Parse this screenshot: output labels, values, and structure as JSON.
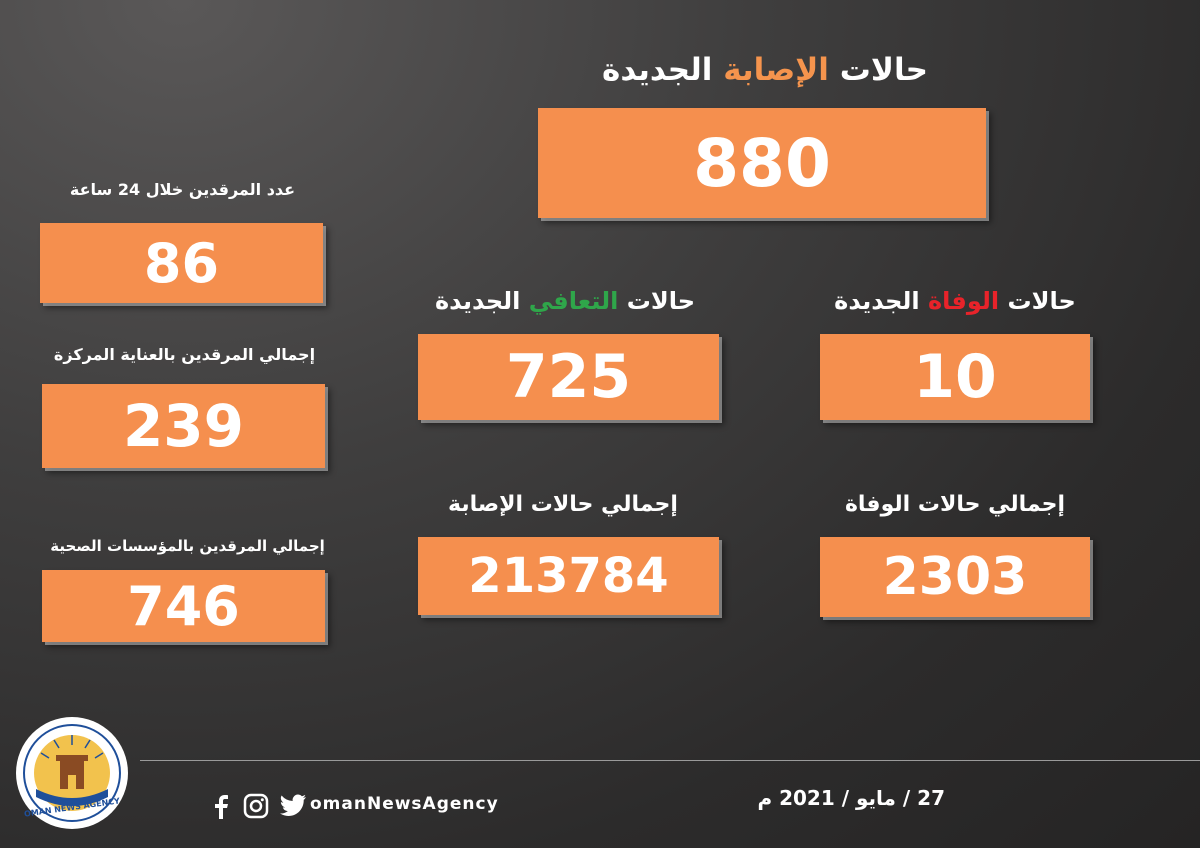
{
  "main": {
    "new_cases": {
      "title_pre": "حالات ",
      "title_hl": "الإصابة",
      "title_post": " الجديدة",
      "value": "880"
    },
    "new_recoveries": {
      "title_pre": "حالات ",
      "title_hl": "التعافي",
      "title_post": " الجديدة",
      "value": "725"
    },
    "new_deaths": {
      "title_pre": "حالات ",
      "title_hl": "الوفاة",
      "title_post": " الجديدة",
      "value": "10"
    },
    "total_cases": {
      "title": "إجمالي حالات الإصابة",
      "value": "213784"
    },
    "total_deaths": {
      "title": "إجمالي حالات الوفاة",
      "value": "2303"
    }
  },
  "side": {
    "hosp_24h": {
      "title": "عدد المرقدين خلال 24 ساعة",
      "value": "86"
    },
    "icu_total": {
      "title": "إجمالي المرقدين بالعناية المركزة",
      "value": "239"
    },
    "hosp_total": {
      "title": "إجمالي المرقدين بالمؤسسات الصحية",
      "value": "746"
    }
  },
  "footer": {
    "date": "27 / مايو / 2021 م",
    "handle": "omanNewsAgency",
    "icons": [
      "facebook-icon",
      "instagram-icon",
      "twitter-icon"
    ],
    "logo_text": "OMAN NEWS AGENCY"
  },
  "colors": {
    "box": "#f58f4e",
    "highlight_orange": "#f5944d",
    "highlight_green": "#2fa64a",
    "highlight_red": "#e8232a"
  }
}
